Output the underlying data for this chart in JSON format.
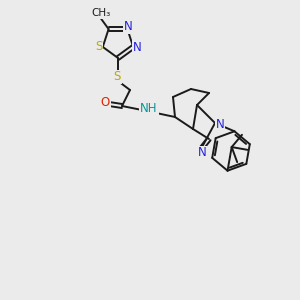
{
  "background_color": "#ebebeb",
  "bond_color": "#1a1a1a",
  "bond_width": 1.4,
  "atom_colors": {
    "N": "#2222dd",
    "S": "#bbaa00",
    "O": "#dd2200",
    "C": "#1a1a1a",
    "H": "#009999"
  },
  "font_size": 8.5,
  "figsize": [
    3.0,
    3.0
  ],
  "dpi": 100
}
